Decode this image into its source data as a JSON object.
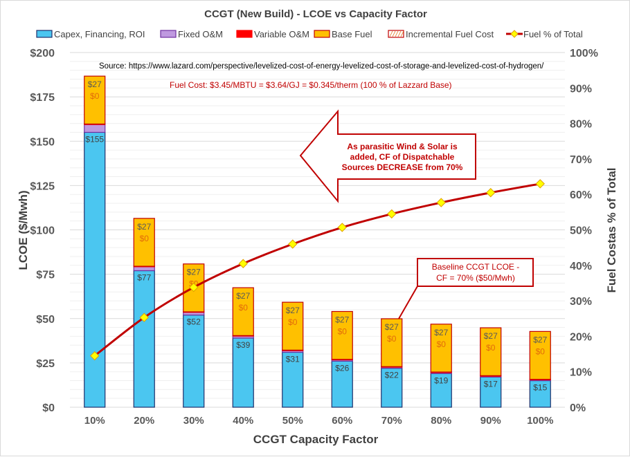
{
  "chart_data": {
    "type": "bar",
    "stacked": true,
    "title": "CCGT (New Build) - LCOE vs Capacity Factor",
    "xlabel": "CCGT Capacity Factor",
    "ylabel": "LCOE ($/Mwh)",
    "y2label": "Fuel Costas % of Total",
    "ylim": [
      0,
      200
    ],
    "y2lim": [
      0,
      100
    ],
    "yticks": [
      "$0",
      "$25",
      "$50",
      "$75",
      "$100",
      "$125",
      "$150",
      "$175",
      "$200"
    ],
    "y2ticks": [
      "0%",
      "10%",
      "20%",
      "30%",
      "40%",
      "50%",
      "60%",
      "70%",
      "80%",
      "90%",
      "100%"
    ],
    "grid": true,
    "legend_position": "top",
    "categories": [
      "10%",
      "20%",
      "30%",
      "40%",
      "50%",
      "60%",
      "70%",
      "80%",
      "90%",
      "100%"
    ],
    "series": [
      {
        "name": "Capex, Financing, ROI",
        "color": "#4bc6f0",
        "edge": "#1f2f6b",
        "values": [
          155,
          77,
          52,
          39,
          31,
          26,
          22,
          19,
          17,
          15
        ],
        "labels": [
          "$155",
          "$77",
          "$52",
          "$39",
          "$31",
          "$26",
          "$22",
          "$19",
          "$17",
          "$15"
        ]
      },
      {
        "name": "Fixed O&M",
        "color": "#bf99df",
        "edge": "#7030a0",
        "values": [
          4.4,
          2.2,
          1.5,
          1.1,
          0.9,
          0.7,
          0.6,
          0.55,
          0.5,
          0.44
        ]
      },
      {
        "name": "Variable O&M",
        "color": "#ff0000",
        "edge": "#ff0000",
        "values": [
          0.3,
          0.3,
          0.3,
          0.3,
          0.3,
          0.3,
          0.3,
          0.3,
          0.3,
          0.3
        ]
      },
      {
        "name": "Base Fuel",
        "color": "#ffc000",
        "edge": "#c00000",
        "values": [
          27,
          27,
          27,
          27,
          27,
          27,
          27,
          27,
          27,
          27
        ],
        "labels": [
          "$27",
          "$27",
          "$27",
          "$27",
          "$27",
          "$27",
          "$27",
          "$27",
          "$27",
          "$27"
        ]
      },
      {
        "name": "Incremental Fuel Cost",
        "color": "#ffffff",
        "edge": "#c00000",
        "values": [
          0,
          0,
          0,
          0,
          0,
          0,
          0,
          0,
          0,
          0
        ],
        "labels": [
          "$0",
          "$0",
          "$0",
          "$0",
          "$0",
          "$0",
          "$0",
          "$0",
          "$0",
          "$0"
        ]
      },
      {
        "name": "Fuel % of Total",
        "type": "line",
        "axis": "right",
        "color": "#c00000",
        "marker": "#ffff00",
        "values": [
          14.5,
          25.3,
          33.8,
          40.5,
          46,
          50.7,
          54.5,
          57.7,
          60.5,
          63
        ]
      }
    ],
    "annotations": {
      "source": "Source: https://www.lazard.com/perspective/levelized-cost-of-energy-levelized-cost-of-storage-and-levelized-cost-of-hydrogen/",
      "fuel_cost": "Fuel Cost: $3.45/MBTU  = $3.64/GJ = $0.345/therm (100 % of Lazzard Base)",
      "arrow_lines": [
        "As  parasitic Wind & Solar is",
        "added, CF of Dispatchable",
        "Sources DECREASE  from 70%"
      ],
      "baseline_lines": [
        "Baseline CCGT LCOE -",
        "CF = 70% ($50/Mwh)"
      ]
    }
  }
}
